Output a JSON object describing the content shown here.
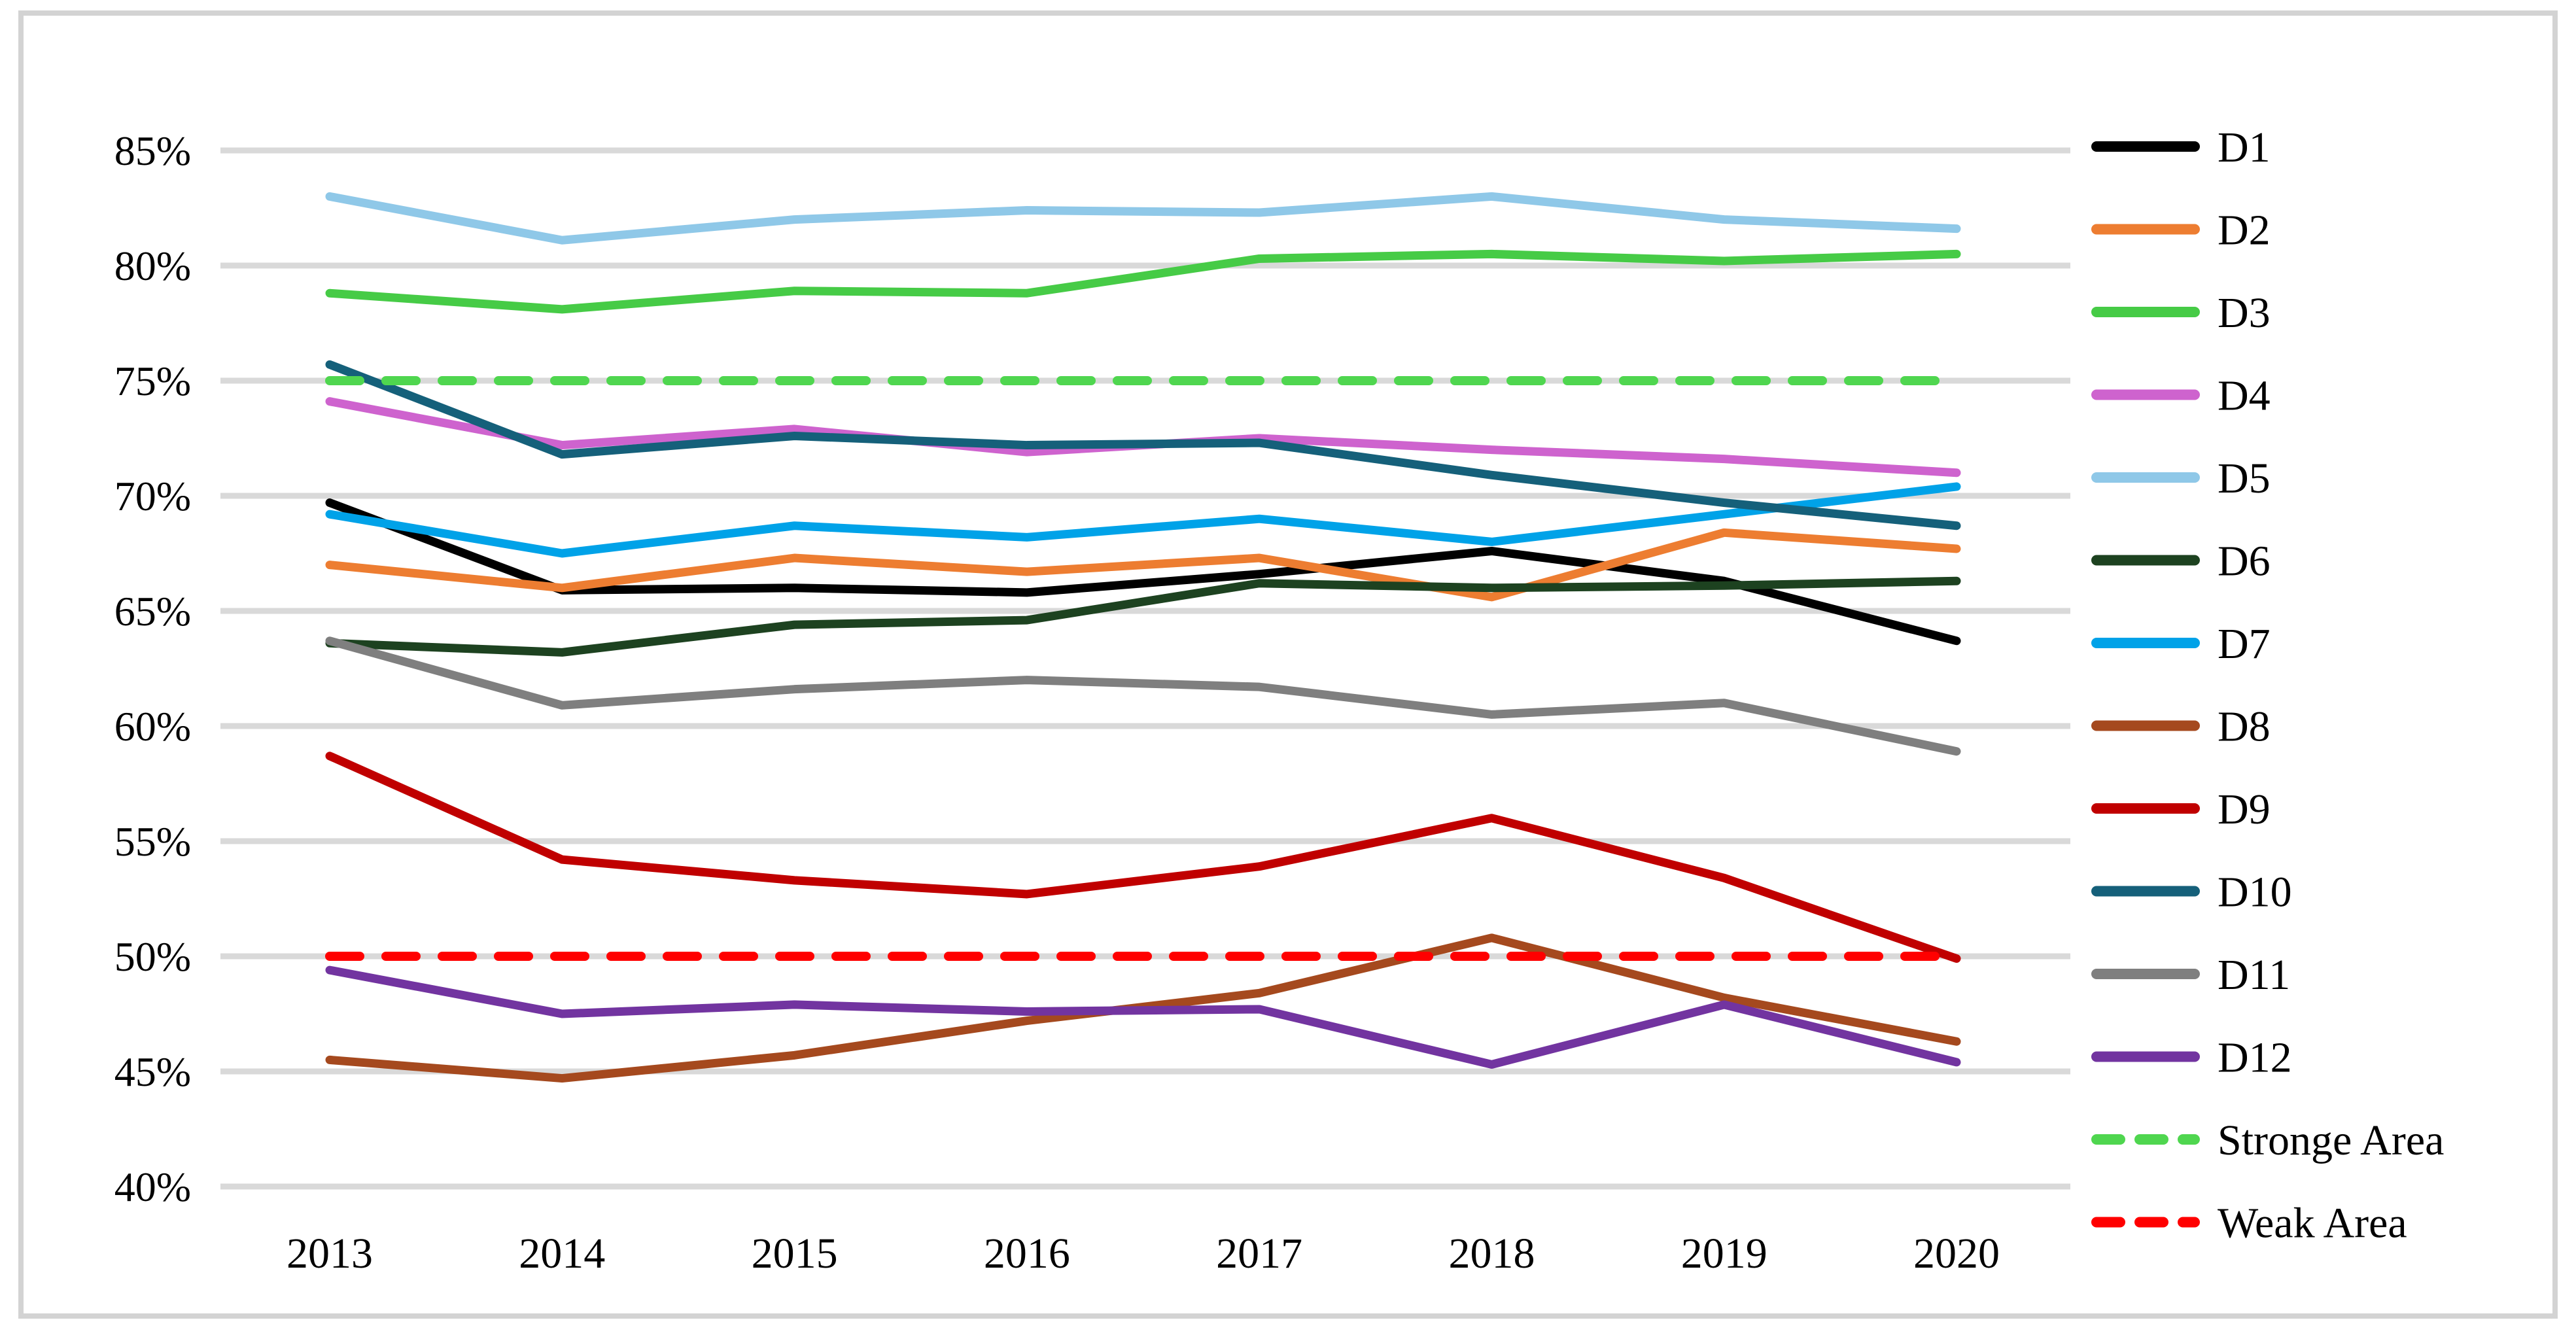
{
  "chart_data": {
    "type": "line",
    "title": "",
    "xlabel": "",
    "ylabel": "",
    "x": [
      "2013",
      "2014",
      "2015",
      "2016",
      "2017",
      "2018",
      "2019",
      "2020"
    ],
    "y_axis": {
      "min": 40,
      "max": 85,
      "step": 5,
      "tick_format": "percent",
      "tick_labels": [
        "85%",
        "80%",
        "75%",
        "70%",
        "65%",
        "60%",
        "55%",
        "50%",
        "45%",
        "40%"
      ]
    },
    "grid": true,
    "legend_position": "right",
    "series": [
      {
        "name": "D1",
        "color": "#000000",
        "dashed": false,
        "values": [
          69.7,
          65.9,
          66.0,
          65.8,
          66.6,
          67.6,
          66.3,
          63.7
        ]
      },
      {
        "name": "D2",
        "color": "#ED7D31",
        "dashed": false,
        "values": [
          67.0,
          66.0,
          67.3,
          66.7,
          67.3,
          65.6,
          68.4,
          67.7
        ]
      },
      {
        "name": "D3",
        "color": "#46CB46",
        "dashed": false,
        "values": [
          78.8,
          78.1,
          78.9,
          78.8,
          80.3,
          80.5,
          80.2,
          80.5
        ]
      },
      {
        "name": "D4",
        "color": "#CE63CE",
        "dashed": false,
        "values": [
          74.1,
          72.2,
          72.9,
          71.9,
          72.5,
          72.0,
          71.6,
          71.0
        ]
      },
      {
        "name": "D5",
        "color": "#8FC8E8",
        "dashed": false,
        "values": [
          83.0,
          81.1,
          82.0,
          82.4,
          82.3,
          83.0,
          82.0,
          81.6
        ]
      },
      {
        "name": "D6",
        "color": "#1D4220",
        "dashed": false,
        "values": [
          63.6,
          63.2,
          64.4,
          64.6,
          66.2,
          66.0,
          66.1,
          66.3
        ]
      },
      {
        "name": "D7",
        "color": "#00A2E8",
        "dashed": false,
        "values": [
          69.2,
          67.5,
          68.7,
          68.2,
          69.0,
          68.0,
          69.2,
          70.4
        ]
      },
      {
        "name": "D8",
        "color": "#A5491E",
        "dashed": false,
        "values": [
          45.5,
          44.7,
          45.7,
          47.2,
          48.4,
          50.8,
          48.2,
          46.3
        ]
      },
      {
        "name": "D9",
        "color": "#C00000",
        "dashed": false,
        "values": [
          58.7,
          54.2,
          53.3,
          52.7,
          53.9,
          56.0,
          53.4,
          49.9
        ]
      },
      {
        "name": "D10",
        "color": "#15607A",
        "dashed": false,
        "values": [
          75.7,
          71.8,
          72.6,
          72.2,
          72.3,
          70.9,
          69.7,
          68.7
        ]
      },
      {
        "name": "D11",
        "color": "#7F7F7F",
        "dashed": false,
        "values": [
          63.7,
          60.9,
          61.6,
          62.0,
          61.7,
          60.5,
          61.0,
          58.9
        ]
      },
      {
        "name": "D12",
        "color": "#7234A0",
        "dashed": false,
        "values": [
          49.4,
          47.5,
          47.9,
          47.6,
          47.7,
          45.3,
          47.9,
          45.4
        ]
      },
      {
        "name": "Stronge Area",
        "color": "#4FD64F",
        "dashed": true,
        "values": [
          75,
          75,
          75,
          75,
          75,
          75,
          75,
          75
        ]
      },
      {
        "name": "Weak Area",
        "color": "#FF0000",
        "dashed": true,
        "values": [
          50,
          50,
          50,
          50,
          50,
          50,
          50,
          50
        ]
      }
    ],
    "colors": {
      "background": "#FFFFFF",
      "gridline": "#D9D9D9",
      "frame_border": "#D3D3D3",
      "text": "#000000"
    }
  }
}
